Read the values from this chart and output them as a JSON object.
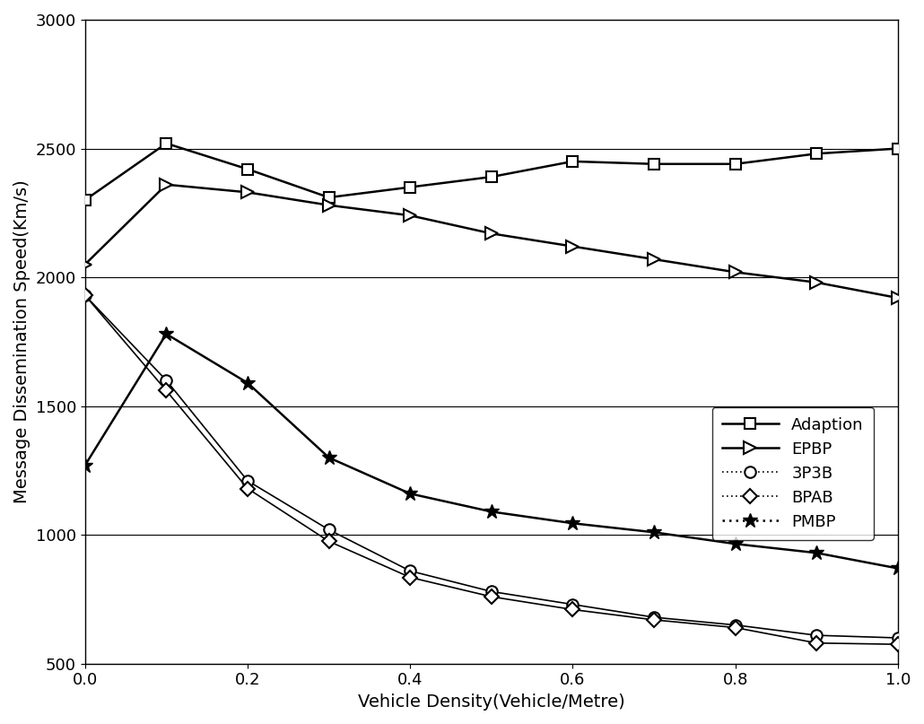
{
  "x": [
    0,
    0.1,
    0.2,
    0.3,
    0.4,
    0.5,
    0.6,
    0.7,
    0.8,
    0.9,
    1.0
  ],
  "Adaption": [
    2300,
    2520,
    2420,
    2310,
    2350,
    2390,
    2450,
    2440,
    2440,
    2480,
    2500
  ],
  "EPBP": [
    2050,
    2360,
    2330,
    2280,
    2240,
    2170,
    2120,
    2070,
    2020,
    1980,
    1920
  ],
  "3P3B": [
    1930,
    1600,
    1210,
    1020,
    860,
    780,
    730,
    680,
    650,
    610,
    600
  ],
  "BPAB": [
    1930,
    1560,
    1180,
    975,
    835,
    760,
    710,
    670,
    640,
    580,
    575
  ],
  "PMBP": [
    1270,
    1780,
    1590,
    1300,
    1160,
    1090,
    1045,
    1010,
    965,
    930,
    870
  ],
  "xlabel": "Vehicle Density(Vehicle/Metre)",
  "ylabel": "Message Dissemination Speed(Km/s)",
  "xlim": [
    0,
    1.0
  ],
  "ylim": [
    500,
    3000
  ],
  "yticks": [
    500,
    1000,
    1500,
    2000,
    2500,
    3000
  ],
  "xticks": [
    0,
    0.2,
    0.4,
    0.6,
    0.8,
    1.0
  ],
  "line_color": "#000000",
  "background_color": "#ffffff",
  "font_size_label": 14,
  "font_size_tick": 13,
  "font_size_legend": 13,
  "grid_linewidth": 0.8
}
